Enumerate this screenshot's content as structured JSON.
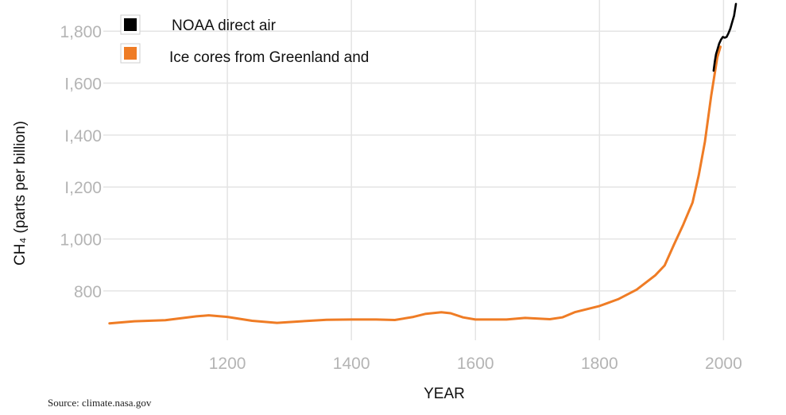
{
  "chart_data": {
    "type": "line",
    "xlabel": "YEAR",
    "ylabel": "CH₄ (parts per billion)",
    "xlim": [
      1000,
      2020
    ],
    "ylim": [
      610,
      1920
    ],
    "xticks": [
      1200,
      1400,
      1600,
      1800,
      2000
    ],
    "yticks": [
      800,
      1000,
      1200,
      1400,
      1600,
      1800
    ],
    "ytick_labels": [
      "800",
      "1,000",
      "I,200",
      "I,400",
      "I,600",
      "1,800"
    ],
    "grid": true,
    "legend_position": "top-left",
    "series": [
      {
        "name": "NOAA direct air",
        "color": "#000000",
        "points": [
          [
            1984,
            1648
          ],
          [
            1986,
            1685
          ],
          [
            1988,
            1712
          ],
          [
            1990,
            1728
          ],
          [
            1993,
            1752
          ],
          [
            1996,
            1768
          ],
          [
            1999,
            1778
          ],
          [
            2002,
            1775
          ],
          [
            2005,
            1778
          ],
          [
            2008,
            1792
          ],
          [
            2011,
            1810
          ],
          [
            2014,
            1835
          ],
          [
            2017,
            1860
          ],
          [
            2020,
            1905
          ]
        ]
      },
      {
        "name": "Ice cores from Greenland and",
        "color": "#ef7c25",
        "points": [
          [
            1010,
            675
          ],
          [
            1050,
            683
          ],
          [
            1100,
            687
          ],
          [
            1150,
            702
          ],
          [
            1170,
            706
          ],
          [
            1200,
            700
          ],
          [
            1240,
            685
          ],
          [
            1280,
            677
          ],
          [
            1320,
            683
          ],
          [
            1360,
            689
          ],
          [
            1400,
            690
          ],
          [
            1440,
            690
          ],
          [
            1470,
            688
          ],
          [
            1500,
            700
          ],
          [
            1520,
            712
          ],
          [
            1545,
            718
          ],
          [
            1560,
            714
          ],
          [
            1580,
            698
          ],
          [
            1600,
            690
          ],
          [
            1650,
            690
          ],
          [
            1680,
            696
          ],
          [
            1720,
            691
          ],
          [
            1740,
            698
          ],
          [
            1760,
            718
          ],
          [
            1800,
            742
          ],
          [
            1830,
            768
          ],
          [
            1860,
            805
          ],
          [
            1890,
            860
          ],
          [
            1905,
            898
          ],
          [
            1920,
            978
          ],
          [
            1935,
            1055
          ],
          [
            1950,
            1140
          ],
          [
            1960,
            1245
          ],
          [
            1970,
            1375
          ],
          [
            1980,
            1550
          ],
          [
            1990,
            1700
          ],
          [
            1995,
            1740
          ]
        ]
      }
    ],
    "source": "Source: climate.nasa.gov"
  }
}
